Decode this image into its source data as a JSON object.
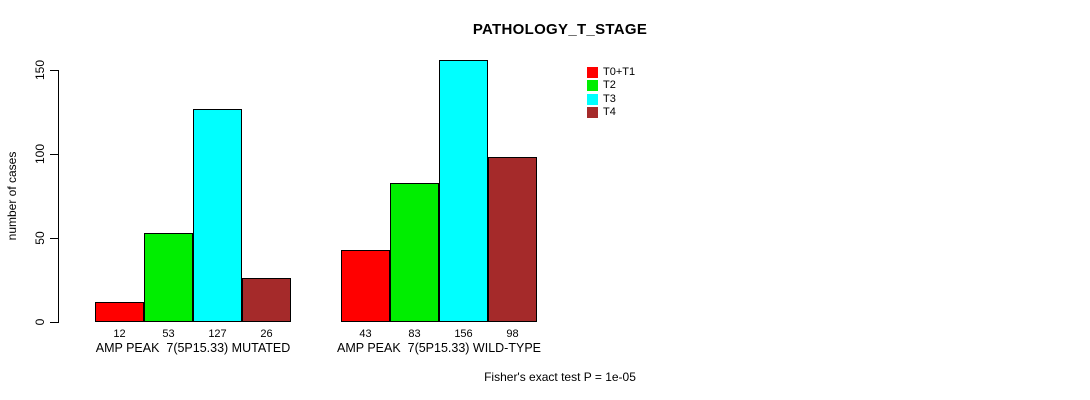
{
  "chart_data": {
    "type": "bar",
    "title": "PATHOLOGY_T_STAGE",
    "ylabel": "number of cases",
    "ylim": [
      0,
      150
    ],
    "yticks": [
      0,
      50,
      100,
      150
    ],
    "grid": false,
    "legend_position": "top-right",
    "categories": [
      "AMP PEAK  7(5P15.33) MUTATED",
      "AMP PEAK  7(5P15.33) WILD-TYPE"
    ],
    "series": [
      {
        "name": "T0+T1",
        "color": "#FF0000",
        "values": [
          12,
          43
        ]
      },
      {
        "name": "T2",
        "color": "#00EE00",
        "values": [
          53,
          83
        ]
      },
      {
        "name": "T3",
        "color": "#00FFFF",
        "values": [
          127,
          156
        ]
      },
      {
        "name": "T4",
        "color": "#A52A2A",
        "values": [
          26,
          98
        ]
      }
    ],
    "bar_value_labels": [
      [
        12,
        53,
        127,
        26
      ],
      [
        43,
        83,
        156,
        98
      ]
    ],
    "footnote": "Fisher's exact test P = 1e-05",
    "axis_color": "#000000",
    "bar_border_color": "#000000"
  }
}
